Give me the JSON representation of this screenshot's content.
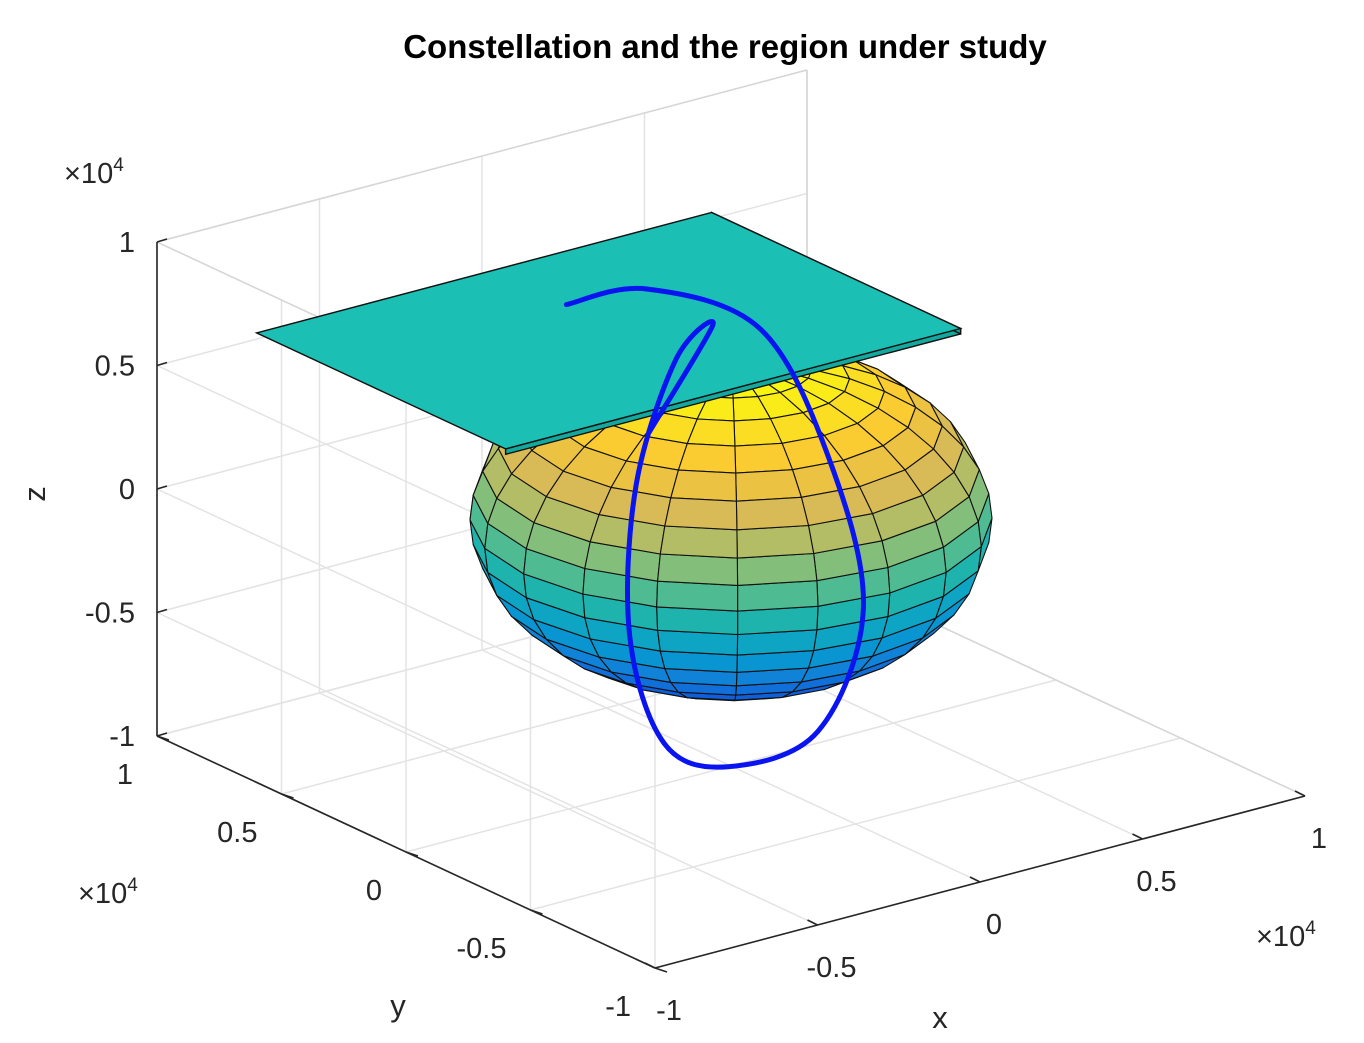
{
  "figure": {
    "title": "Constellation and the region under study"
  },
  "chart_data": {
    "type": "3d-surface-and-line",
    "title": "Constellation and the region under study",
    "xlabel": "x",
    "ylabel": "y",
    "zlabel": "z",
    "xlim": [
      -10000,
      10000
    ],
    "ylim": [
      -10000,
      10000
    ],
    "zlim": [
      -10000,
      10000
    ],
    "grid": true,
    "axis_exponent": {
      "x": "×10^4",
      "y": "×10^4",
      "z": "×10^4"
    },
    "ticks": {
      "x": [
        "-1",
        "-0.5",
        "0",
        "0.5",
        "1"
      ],
      "y": [
        "-1",
        "-0.5",
        "0",
        "0.5",
        "1"
      ],
      "z": [
        "-1",
        "-0.5",
        "0",
        "0.5",
        "1"
      ]
    },
    "earth_surface": {
      "shape": "ellipsoid",
      "center": [
        0,
        0,
        0
      ],
      "radii": [
        6378,
        6378,
        6357
      ],
      "colormap": "parula",
      "color_by": "z"
    },
    "region_plate": {
      "color": "#1bbfb3",
      "x_range": [
        -10000,
        4000
      ],
      "y_range": [
        -4000,
        6000
      ],
      "z": 8200
    },
    "orbit_track": {
      "color": "#0a14f0",
      "points_xyz": [
        [
          -2000,
          4000,
          7500
        ],
        [
          -600,
          2600,
          8300
        ],
        [
          1200,
          400,
          7100
        ],
        [
          2400,
          -800,
          2000
        ],
        [
          3000,
          -1400,
          -4000
        ],
        [
          1600,
          -1400,
          -8500
        ],
        [
          -400,
          -400,
          -9700
        ],
        [
          -1600,
          600,
          -8800
        ],
        [
          -2200,
          1200,
          -4500
        ],
        [
          -2000,
          1200,
          1500
        ],
        [
          -1000,
          900,
          6400
        ],
        [
          -100,
          600,
          7600
        ],
        [
          -1600,
          1200,
          3500
        ]
      ]
    }
  }
}
